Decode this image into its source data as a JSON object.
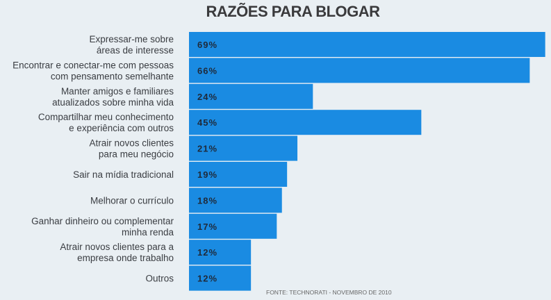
{
  "chart_data": {
    "type": "bar",
    "orientation": "horizontal",
    "title": "RAZÕES PARA BLOGAR",
    "source": "FONTE: TECHNORATI - NOVEMBRO DE 2010",
    "categories": [
      [
        "Expressar-me sobre",
        "áreas de interesse"
      ],
      [
        "Encontrar e conectar-me com pessoas",
        "com pensamento semelhante"
      ],
      [
        "Manter amigos e familiares",
        "atualizados sobre minha vida"
      ],
      [
        "Compartilhar meu conhecimento",
        "e experiência com outros"
      ],
      [
        "Atrair novos clientes",
        "para meu negócio"
      ],
      [
        "Sair na mídia tradicional"
      ],
      [
        "Melhorar o currículo"
      ],
      [
        "Ganhar dinheiro ou complementar",
        "minha renda"
      ],
      [
        "Atrair novos clientes para a",
        "empresa onde trabalho"
      ],
      [
        "Outros"
      ]
    ],
    "values": [
      69,
      66,
      24,
      45,
      21,
      19,
      18,
      17,
      12,
      12
    ],
    "value_labels": [
      "69%",
      "66%",
      "24%",
      "45%",
      "21%",
      "19%",
      "18%",
      "17%",
      "12%",
      "12%"
    ],
    "unit": "%",
    "bar_color": "#1a8be2",
    "grid": false
  }
}
